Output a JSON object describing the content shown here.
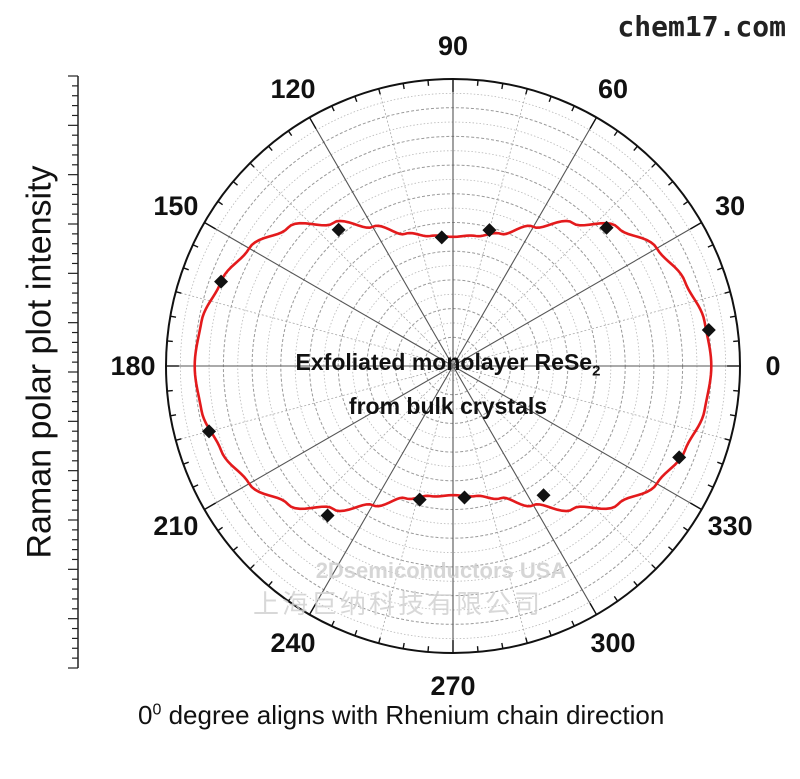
{
  "watermark_site": "chem17.com",
  "watermark_company": "2Dsemiconductors USA",
  "watermark_company_cn": "上海巨纳科技有限公司",
  "annotation": {
    "line1": "Exfoliated monolayer ReSe",
    "subscript": "2",
    "line2": "from bulk crystals"
  },
  "colors": {
    "curve": "#e31a1c",
    "markers": "#111111",
    "grid": "#9a9a9a",
    "frame": "#111111"
  },
  "chart_data": {
    "type": "polar",
    "title": "",
    "ylabel": "Raman polar plot intensity",
    "xlabel_prefix": "0",
    "xlabel_superscript": "0",
    "xlabel_rest": " degree aligns with Rhenium chain direction",
    "angle_ticks": [
      "0",
      "30",
      "60",
      "90",
      "120",
      "150",
      "180",
      "210",
      "240",
      "270",
      "300",
      "330"
    ],
    "angle_tick_values": [
      0,
      30,
      60,
      90,
      120,
      150,
      180,
      210,
      240,
      270,
      300,
      330
    ],
    "radial_max": 1.0,
    "grid_rings": [
      0.1,
      0.2,
      0.3,
      0.4,
      0.5,
      0.6,
      0.7,
      0.8,
      0.9
    ],
    "fit_curve": {
      "angles": [
        0,
        10,
        20,
        30,
        40,
        50,
        60,
        70,
        80,
        90,
        100,
        110,
        120,
        130,
        140,
        150,
        160,
        170,
        180
      ],
      "r": [
        0.9,
        0.89,
        0.86,
        0.82,
        0.75,
        0.65,
        0.56,
        0.49,
        0.46,
        0.45,
        0.46,
        0.49,
        0.56,
        0.65,
        0.75,
        0.82,
        0.86,
        0.89,
        0.9
      ]
    },
    "measured_points": [
      {
        "angle": 8,
        "r": 0.9
      },
      {
        "angle": 42,
        "r": 0.72
      },
      {
        "angle": 75,
        "r": 0.49
      },
      {
        "angle": 95,
        "r": 0.45
      },
      {
        "angle": 130,
        "r": 0.62
      },
      {
        "angle": 160,
        "r": 0.86
      },
      {
        "angle": 195,
        "r": 0.88
      },
      {
        "angle": 230,
        "r": 0.68
      },
      {
        "angle": 256,
        "r": 0.48
      },
      {
        "angle": 275,
        "r": 0.46
      },
      {
        "angle": 305,
        "r": 0.55
      },
      {
        "angle": 338,
        "r": 0.85
      }
    ]
  }
}
